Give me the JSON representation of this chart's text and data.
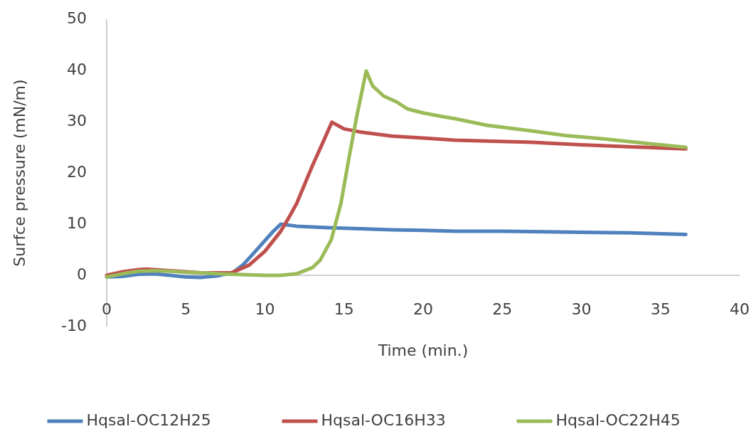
{
  "chart_data": {
    "type": "line",
    "xlabel": "Time (min.)",
    "ylabel": "Surfce pressure (mN/m)",
    "xlim": [
      0,
      40
    ],
    "xticks": [
      0,
      5,
      10,
      15,
      20,
      25,
      30,
      35,
      40
    ],
    "ylim": [
      -10,
      50
    ],
    "yticks": [
      -10,
      0,
      10,
      20,
      30,
      40,
      50
    ],
    "grid": false,
    "legend": "bottom",
    "line_style": "solid",
    "series": [
      {
        "name": "Hqsal-OC12H25",
        "color": "#4f81bd",
        "x": [
          0,
          1,
          2,
          3,
          4,
          5,
          6,
          7,
          8,
          8.6,
          9.4,
          10,
          10.5,
          11,
          12,
          14,
          16,
          18,
          20,
          22,
          25,
          27.7,
          30,
          33,
          36.6
        ],
        "values": [
          -0.3,
          -0.2,
          0.2,
          0.3,
          0,
          -0.3,
          -0.4,
          -0.1,
          0.6,
          2,
          4.7,
          6.8,
          8.5,
          10,
          9.6,
          9.3,
          9.1,
          8.9,
          8.8,
          8.6,
          8.6,
          8.5,
          8.4,
          8.3,
          8
        ]
      },
      {
        "name": "Hqsal-OC16H33",
        "color": "#c0504d",
        "x": [
          0,
          1,
          2,
          2.5,
          3,
          4,
          5,
          6,
          7,
          7.9,
          9,
          10,
          11,
          11.5,
          12,
          13,
          13.6,
          14.23,
          15,
          16,
          18,
          20,
          22,
          24,
          26.6,
          30,
          33,
          36.6
        ],
        "values": [
          0,
          0.7,
          1.1,
          1.2,
          1.1,
          0.9,
          0.7,
          0.5,
          0.5,
          0.5,
          2,
          4.7,
          8.6,
          11.2,
          14,
          21.4,
          25.5,
          29.9,
          28.6,
          28,
          27.2,
          26.8,
          26.4,
          26.2,
          26,
          25.5,
          25.1,
          24.7
        ]
      },
      {
        "name": "Hqsal-OC22H45",
        "color": "#9bbb59",
        "x": [
          0,
          1,
          2,
          3,
          4,
          5,
          6,
          7,
          8,
          9,
          10,
          11,
          12,
          13,
          13.5,
          14.2,
          14.8,
          15.3,
          15.8,
          16.4,
          16.8,
          17.5,
          18.3,
          19,
          20,
          21.2,
          22,
          24,
          26.6,
          29,
          31.2,
          34,
          36.6
        ],
        "values": [
          -0.3,
          0.3,
          0.8,
          0.9,
          0.8,
          0.6,
          0.5,
          0.3,
          0.2,
          0.1,
          0,
          0,
          0.3,
          1.5,
          3,
          7,
          14,
          22.7,
          31,
          39.9,
          37,
          35,
          33.9,
          32.5,
          31.7,
          31,
          30.6,
          29.3,
          28.3,
          27.3,
          26.7,
          25.8,
          25
        ]
      }
    ]
  }
}
